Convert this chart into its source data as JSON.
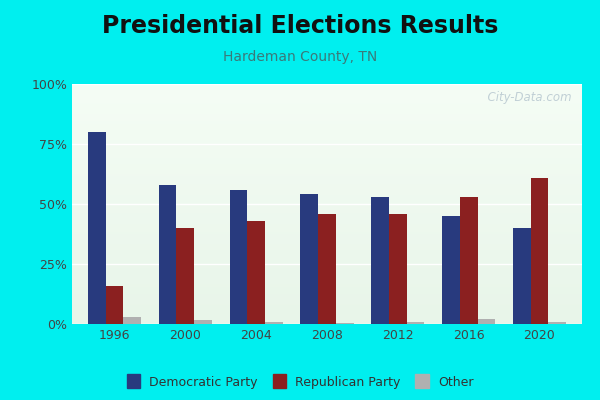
{
  "title": "Presidential Elections Results",
  "subtitle": "Hardeman County, TN",
  "years": [
    1996,
    2000,
    2004,
    2008,
    2012,
    2016,
    2020
  ],
  "democratic": [
    80,
    58,
    56,
    54,
    53,
    45,
    40
  ],
  "republican": [
    16,
    40,
    43,
    46,
    46,
    53,
    61
  ],
  "other": [
    3,
    1.5,
    1,
    0.5,
    1,
    2,
    1
  ],
  "dem_color": "#283a7e",
  "rep_color": "#8b2020",
  "other_color": "#b0b0b0",
  "outer_bg": "#00efef",
  "plot_bg_top": "#e8f5e9",
  "plot_bg_bottom": "#f5fdf5",
  "yticks": [
    0,
    25,
    50,
    75,
    100
  ],
  "ytick_labels": [
    "0%",
    "25%",
    "50%",
    "75%",
    "100%"
  ],
  "bar_width": 0.25,
  "watermark": "  City-Data.com",
  "title_fontsize": 17,
  "subtitle_fontsize": 10,
  "legend_fontsize": 9
}
